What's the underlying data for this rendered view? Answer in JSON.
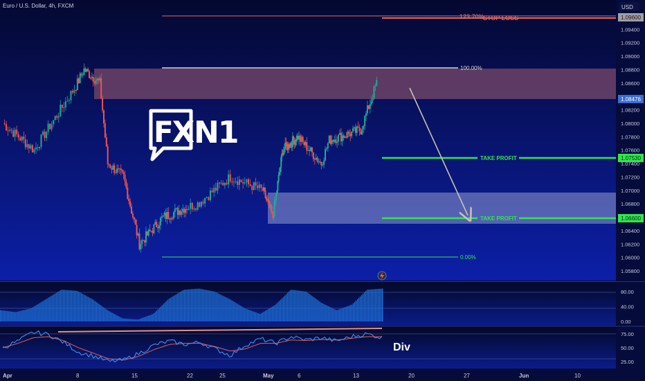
{
  "symbol_title": "Euro / U.S. Dollar, 4h, FXCM",
  "currency_label": "USD",
  "logo": {
    "text_fx": "FX",
    "text_n1": "N1"
  },
  "annotations": {
    "stop_loss": "STOP LOSS",
    "take_profit_1": "TAKE PROFIT",
    "take_profit_2": "TAKE PROFIT",
    "fib_top": "123.70%",
    "fib_100": "100.00%",
    "fib_0": "0.00%",
    "divergence": "Div"
  },
  "price_tags": {
    "stop_loss": "1.09600",
    "current": "1.08476",
    "take_profit_1": "1.07530",
    "take_profit_2": "1.06600"
  },
  "colors": {
    "background": "#050b3a",
    "bull": "#26a69a",
    "bear": "#ef5350",
    "stop_loss": "#e06666",
    "take_profit": "#2ee84a",
    "resistance_zone": "#7a4a6a",
    "support_zone": "#b0b8e0",
    "oscillator": "#1e6fd6"
  },
  "chart_data": [
    {
      "type": "candlestick",
      "title": "Euro / U.S. Dollar, 4h, FXCM",
      "ylim": [
        1.056,
        1.098
      ],
      "y_ticks": [
        "1.09600",
        "1.09400",
        "1.09200",
        "1.09000",
        "1.08800",
        "1.08600",
        "1.08400",
        "1.08200",
        "1.08000",
        "1.07800",
        "1.07600",
        "1.07400",
        "1.07200",
        "1.07000",
        "1.06800",
        "1.06600",
        "1.06400",
        "1.06200",
        "1.06000",
        "1.05800"
      ],
      "x_ticks": [
        "Apr",
        "8",
        "15",
        "22",
        "25",
        "May",
        "6",
        "13",
        "20",
        "27",
        "Jun",
        "10"
      ],
      "key_points": [
        {
          "x": "Apr 1",
          "y": 1.08
        },
        {
          "x": "Apr 4",
          "y": 1.076
        },
        {
          "x": "Apr 9",
          "y": 1.088
        },
        {
          "x": "Apr 11",
          "y": 1.086
        },
        {
          "x": "Apr 12",
          "y": 1.074
        },
        {
          "x": "Apr 14",
          "y": 1.072
        },
        {
          "x": "Apr 16",
          "y": 1.062
        },
        {
          "x": "Apr 19",
          "y": 1.066
        },
        {
          "x": "Apr 23",
          "y": 1.068
        },
        {
          "x": "Apr 26",
          "y": 1.072
        },
        {
          "x": "Apr 29",
          "y": 1.07
        },
        {
          "x": "May 1",
          "y": 1.066
        },
        {
          "x": "May 3",
          "y": 1.076
        },
        {
          "x": "May 6",
          "y": 1.078
        },
        {
          "x": "May 9",
          "y": 1.074
        },
        {
          "x": "May 10",
          "y": 1.0775
        },
        {
          "x": "May 14",
          "y": 1.079
        },
        {
          "x": "May 16",
          "y": 1.086
        }
      ],
      "levels": [
        {
          "label": "STOP LOSS",
          "value": 1.096
        },
        {
          "label": "TAKE PROFIT",
          "value": 1.0753
        },
        {
          "label": "TAKE PROFIT",
          "value": 1.066
        }
      ],
      "fib_levels": [
        {
          "label": "123.70%",
          "value": 1.096
        },
        {
          "label": "100.00%",
          "value": 1.0885
        },
        {
          "label": "0.00%",
          "value": 1.0603
        }
      ],
      "zones": [
        {
          "name": "resistance",
          "from": 1.0842,
          "to": 1.0885
        },
        {
          "name": "support",
          "from": 1.0655,
          "to": 1.0698
        }
      ],
      "projection": {
        "from": {
          "x": "May 14",
          "y": 1.085
        },
        "to": {
          "x": "May 26",
          "y": 1.066
        }
      }
    },
    {
      "type": "area",
      "ylim": [
        0,
        100
      ],
      "y_ticks": [
        "80.00",
        "40.00",
        "0.00"
      ],
      "approx_values": [
        30,
        25,
        35,
        60,
        85,
        82,
        60,
        30,
        8,
        5,
        20,
        60,
        85,
        88,
        80,
        60,
        35,
        20,
        45,
        85,
        80,
        50,
        30,
        45,
        85,
        88
      ]
    },
    {
      "type": "line",
      "ylim": [
        15,
        85
      ],
      "y_ticks": [
        "75.00",
        "50.00",
        "25.00"
      ],
      "series": [
        {
          "values": [
            50,
            62,
            78,
            74,
            60,
            42,
            35,
            25,
            28,
            40,
            55,
            62,
            56,
            60,
            48,
            36,
            55,
            66,
            58,
            70,
            64,
            68,
            62,
            70,
            75,
            68
          ]
        },
        {
          "values": [
            50,
            58,
            68,
            70,
            63,
            50,
            40,
            30,
            28,
            35,
            47,
            56,
            58,
            58,
            52,
            44,
            48,
            58,
            58,
            64,
            63,
            65,
            64,
            67,
            70,
            70
          ]
        }
      ]
    }
  ]
}
